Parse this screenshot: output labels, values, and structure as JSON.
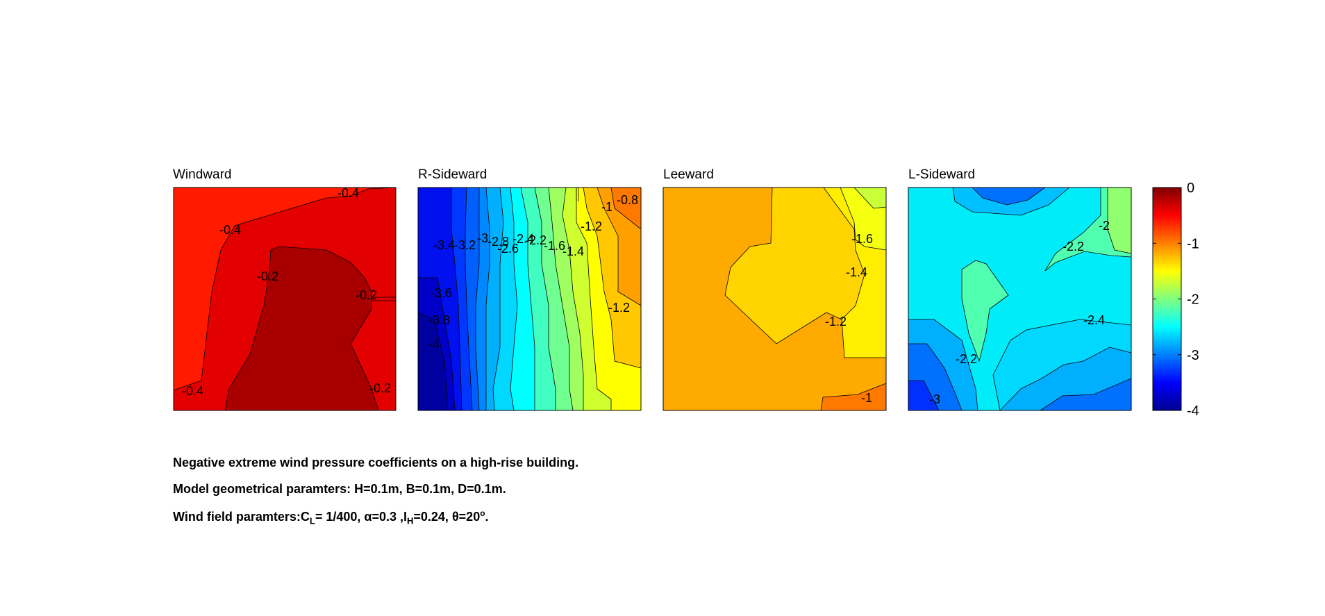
{
  "chart_data": [
    {
      "type": "contour",
      "title": "Windward",
      "contour_labels": [
        "-0.4",
        "-0.4",
        "-0.2",
        "-0.2",
        "-0.4",
        "-0.2"
      ],
      "clim": [
        -4,
        0
      ]
    },
    {
      "type": "contour",
      "title": "R-Sideward",
      "contour_labels": [
        "-0.8",
        "-1",
        "-1.2",
        "-1.4",
        "-1.6",
        "-2.2",
        "-2.4",
        "-2.6",
        "-2.8",
        "-3",
        "-3.2",
        "-3.4",
        "-3.6",
        "-3.8",
        "-4",
        "-1.2"
      ],
      "clim": [
        -4,
        0
      ]
    },
    {
      "type": "contour",
      "title": "Leeward",
      "contour_labels": [
        "-1.6",
        "-1.4",
        "-1.2",
        "-1"
      ],
      "clim": [
        -4,
        0
      ]
    },
    {
      "type": "contour",
      "title": "L-Sideward",
      "contour_labels": [
        "-2",
        "-2.2",
        "-2.4",
        "-2.2",
        "-3"
      ],
      "clim": [
        -4,
        0
      ]
    }
  ],
  "colorbar": {
    "ticks": [
      "0",
      "-1",
      "-2",
      "-3",
      "-4"
    ],
    "values": [
      0,
      -1,
      -2,
      -3,
      -4
    ],
    "colormap": "jet",
    "range": [
      -4,
      0
    ]
  },
  "captions": {
    "line1": "Negative extreme wind pressure coefficients on a high-rise building.",
    "line2": "Model geometrical paramters: H=0.1m, B=0.1m, D=0.1m.",
    "line3_prefix": "Wind field paramters:C",
    "line3_sub_L": "L",
    "line3_mid": "= 1/400, α=0.3 ,I",
    "line3_sub_H": "H",
    "line3_mid2": "=0.24, θ=20",
    "line3_sup": "o",
    "line3_end": "."
  }
}
